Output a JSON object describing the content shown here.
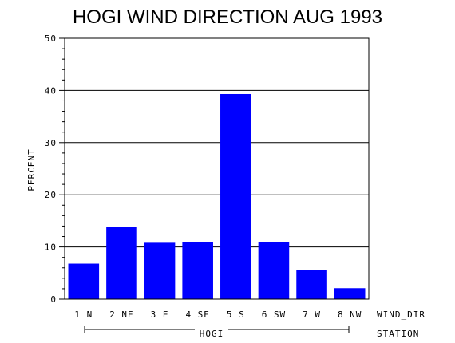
{
  "chart_data": {
    "type": "bar",
    "title": "HOGI WIND DIRECTION AUG 1993",
    "ylabel": "PERCENT",
    "xlabel": "WIND_DIR",
    "group_axis_label": "STATION",
    "group": "HOGI",
    "categories": [
      "1 N",
      "2 NE",
      "3 E",
      "4 SE",
      "5 S",
      "6 SW",
      "7 W",
      "8 NW"
    ],
    "values": [
      6.8,
      13.8,
      10.8,
      11.0,
      39.3,
      11.0,
      5.6,
      2.1
    ],
    "ylim": [
      0,
      50
    ],
    "yticks": [
      "0",
      "10",
      "20",
      "30",
      "40",
      "50"
    ],
    "grid": true,
    "bar_color": "#0000ff"
  }
}
